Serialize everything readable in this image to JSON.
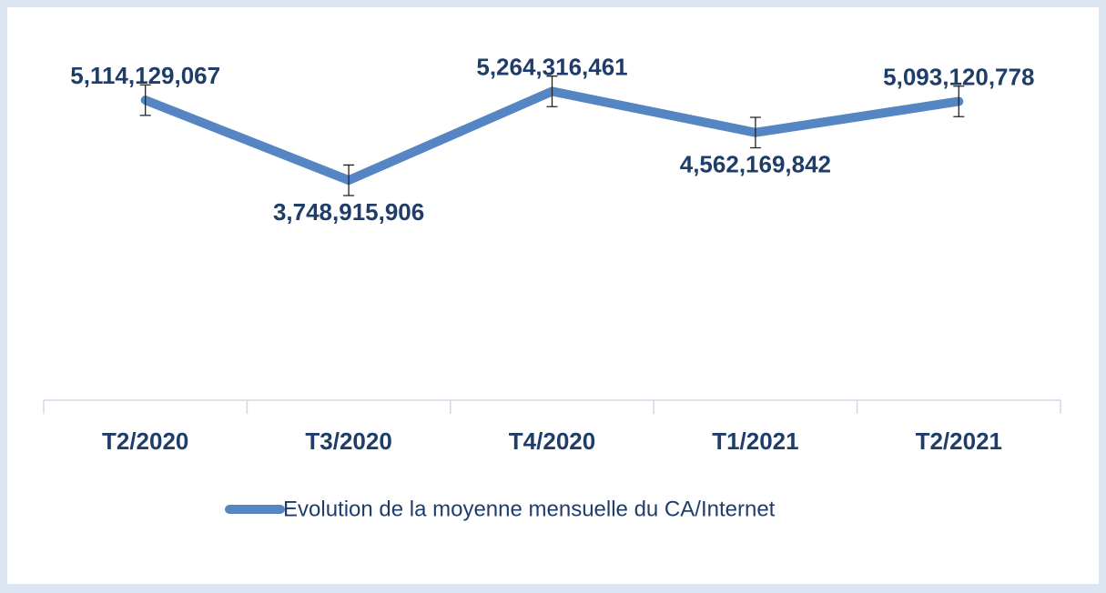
{
  "chart_data": {
    "type": "line",
    "categories": [
      "T2/2020",
      "T3/2020",
      "T4/2020",
      "T1/2021",
      "T2/2021"
    ],
    "series": [
      {
        "name": "Evolution de la moyenne mensuelle du CA/Internet",
        "color": "#5585c2",
        "values": [
          5114129067,
          3748915906,
          5264316461,
          4562169842,
          5093120778
        ],
        "value_labels": [
          "5,114,129,067",
          "3,748,915,906",
          "5,264,316,461",
          "4,562,169,842",
          "5,093,120,778"
        ],
        "errors": [
          260000000,
          260000000,
          260000000,
          260000000,
          260000000
        ]
      }
    ],
    "ylim": [
      0,
      6000000000
    ],
    "legend": "bottom"
  }
}
